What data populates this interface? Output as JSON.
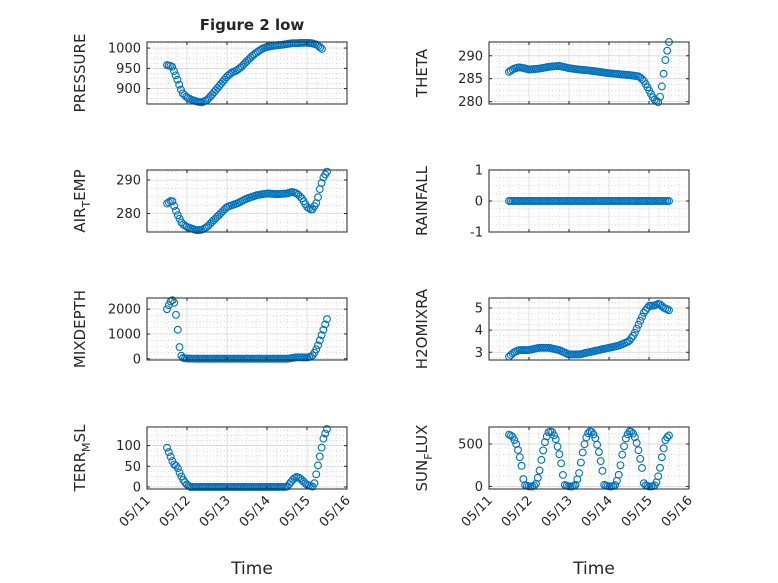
{
  "figure": {
    "title": "Figure 2 low",
    "xlabel": "Time",
    "marker_color": "#0072BD"
  },
  "chart_data": [
    {
      "id": "pressure",
      "type": "scatter",
      "title": "Figure 2 low",
      "ylabel": "PRESSURE",
      "ylim": [
        862,
        1015
      ],
      "yticks": [
        900,
        950,
        1000
      ],
      "xlim": [
        "05/11",
        "05/16"
      ],
      "xticks": [],
      "grid": true,
      "marker": "circle",
      "x": [
        "05/11 12:00",
        "05/11 15:00",
        "05/11 18:00",
        "05/11 21:00",
        "05/12 00:00",
        "05/12 03:00",
        "05/12 06:00",
        "05/12 09:00",
        "05/12 12:00",
        "05/12 15:00",
        "05/12 18:00",
        "05/12 21:00",
        "05/13 00:00",
        "05/13 03:00",
        "05/13 06:00",
        "05/13 09:00",
        "05/13 12:00",
        "05/13 15:00",
        "05/13 18:00",
        "05/13 21:00",
        "05/14 00:00",
        "05/14 03:00",
        "05/14 06:00",
        "05/14 09:00",
        "05/14 12:00",
        "05/14 15:00",
        "05/14 18:00",
        "05/14 21:00",
        "05/15 00:00",
        "05/15 03:00",
        "05/15 06:00",
        "05/15 09:00"
      ],
      "y": [
        958,
        955,
        925,
        890,
        878,
        872,
        868,
        866,
        872,
        885,
        900,
        915,
        930,
        940,
        945,
        955,
        968,
        980,
        990,
        998,
        1003,
        1005,
        1007,
        1008,
        1010,
        1012,
        1012,
        1013,
        1013,
        1012,
        1008,
        998
      ]
    },
    {
      "id": "theta",
      "type": "scatter",
      "ylabel": "THETA",
      "ylim": [
        279.5,
        293
      ],
      "yticks": [
        280,
        285,
        290
      ],
      "xlim": [
        "05/11",
        "05/16"
      ],
      "xticks": [],
      "grid": true,
      "marker": "circle",
      "x": [
        "05/11 12:00",
        "05/11 15:00",
        "05/11 18:00",
        "05/11 21:00",
        "05/12 00:00",
        "05/12 06:00",
        "05/12 12:00",
        "05/12 18:00",
        "05/13 00:00",
        "05/13 06:00",
        "05/13 12:00",
        "05/13 18:00",
        "05/14 00:00",
        "05/14 06:00",
        "05/14 12:00",
        "05/14 18:00",
        "05/14 21:00",
        "05/15 00:00",
        "05/15 03:00",
        "05/15 06:00",
        "05/15 08:00",
        "05/15 10:00",
        "05/15 12:00"
      ],
      "y": [
        286.5,
        287.2,
        287.5,
        287.3,
        287.0,
        287.2,
        287.6,
        287.8,
        287.3,
        287.0,
        286.8,
        286.5,
        286.2,
        286.0,
        285.8,
        285.5,
        284.5,
        282.5,
        280.5,
        279.8,
        284.0,
        289.5,
        293.0
      ]
    },
    {
      "id": "air_temp",
      "type": "scatter",
      "ylabel": "AIR_TEMP",
      "ylabel_parts": [
        "AIR",
        "T",
        "EMP"
      ],
      "ylim": [
        274.5,
        293
      ],
      "yticks": [
        280,
        290
      ],
      "xlim": [
        "05/11",
        "05/16"
      ],
      "xticks": [],
      "grid": true,
      "marker": "circle",
      "x": [
        "05/11 12:00",
        "05/11 15:00",
        "05/11 18:00",
        "05/11 21:00",
        "05/12 00:00",
        "05/12 03:00",
        "05/12 06:00",
        "05/12 09:00",
        "05/12 12:00",
        "05/12 15:00",
        "05/12 18:00",
        "05/12 21:00",
        "05/13 00:00",
        "05/13 06:00",
        "05/13 12:00",
        "05/13 18:00",
        "05/14 00:00",
        "05/14 06:00",
        "05/14 12:00",
        "05/14 15:00",
        "05/14 18:00",
        "05/14 21:00",
        "05/15 00:00",
        "05/15 03:00",
        "05/15 06:00",
        "05/15 08:00",
        "05/15 10:00",
        "05/15 12:00"
      ],
      "y": [
        283.0,
        284.0,
        280.0,
        277.0,
        276.0,
        275.5,
        275.0,
        275.2,
        276.0,
        277.5,
        279.0,
        280.5,
        282.0,
        283.0,
        284.5,
        285.5,
        286.0,
        285.8,
        286.0,
        286.5,
        286.0,
        284.5,
        282.0,
        281.0,
        283.5,
        288.0,
        291.0,
        292.5
      ]
    },
    {
      "id": "rainfall",
      "type": "scatter",
      "ylabel": "RAINFALL",
      "ylim": [
        -1,
        1
      ],
      "yticks": [
        -1,
        0,
        1
      ],
      "xlim": [
        "05/11",
        "05/16"
      ],
      "xticks": [],
      "grid": true,
      "marker": "circle",
      "x": [
        "05/11 12:00",
        "05/15 12:00"
      ],
      "constant_y": 0
    },
    {
      "id": "mixdepth",
      "type": "scatter",
      "ylabel": "MIXDEPTH",
      "ylim": [
        -50,
        2450
      ],
      "yticks": [
        0,
        1000,
        2000
      ],
      "xlim": [
        "05/11",
        "05/16"
      ],
      "xticks": [],
      "grid": true,
      "marker": "circle",
      "x": [
        "05/11 12:00",
        "05/11 14:00",
        "05/11 16:00",
        "05/11 18:00",
        "05/11 19:00",
        "05/11 20:00",
        "05/11 21:00",
        "05/11 22:00",
        "05/12 00:00",
        "05/12 06:00",
        "05/12 12:00",
        "05/12 18:00",
        "05/13 00:00",
        "05/13 06:00",
        "05/13 12:00",
        "05/13 18:00",
        "05/14 00:00",
        "05/14 06:00",
        "05/14 12:00",
        "05/14 18:00",
        "05/15 00:00",
        "05/15 03:00",
        "05/15 05:00",
        "05/15 07:00",
        "05/15 09:00",
        "05/15 11:00",
        "05/15 12:00"
      ],
      "y": [
        2000,
        2300,
        2400,
        1500,
        800,
        200,
        80,
        20,
        10,
        0,
        0,
        0,
        0,
        0,
        0,
        0,
        0,
        0,
        0,
        60,
        50,
        100,
        300,
        600,
        1000,
        1400,
        1600
      ]
    },
    {
      "id": "h2omixra",
      "type": "scatter",
      "ylabel": "H2OMIXRA",
      "ylim": [
        2.65,
        5.45
      ],
      "yticks": [
        3,
        4,
        5
      ],
      "xlim": [
        "05/11",
        "05/16"
      ],
      "xticks": [],
      "grid": true,
      "marker": "circle",
      "x": [
        "05/11 12:00",
        "05/11 15:00",
        "05/11 18:00",
        "05/11 21:00",
        "05/12 00:00",
        "05/12 06:00",
        "05/12 12:00",
        "05/12 18:00",
        "05/13 00:00",
        "05/13 06:00",
        "05/13 12:00",
        "05/13 18:00",
        "05/14 00:00",
        "05/14 06:00",
        "05/14 12:00",
        "05/14 15:00",
        "05/14 18:00",
        "05/14 21:00",
        "05/15 00:00",
        "05/15 03:00",
        "05/15 06:00",
        "05/15 09:00",
        "05/15 12:00"
      ],
      "y": [
        2.8,
        3.0,
        3.1,
        3.1,
        3.1,
        3.2,
        3.2,
        3.1,
        2.9,
        2.9,
        3.0,
        3.1,
        3.2,
        3.3,
        3.5,
        3.8,
        4.3,
        4.8,
        5.1,
        5.1,
        5.2,
        5.0,
        4.9
      ]
    },
    {
      "id": "terr_msl",
      "type": "scatter",
      "ylabel": "TERR_MSL",
      "ylabel_parts": [
        "TERR",
        "M",
        "SL"
      ],
      "ylim": [
        -5,
        145
      ],
      "yticks": [
        0,
        50,
        100
      ],
      "xlim": [
        "05/11",
        "05/16"
      ],
      "xticks": [
        "05/11",
        "05/12",
        "05/13",
        "05/14",
        "05/15",
        "05/16"
      ],
      "xlabel": "Time",
      "grid": true,
      "marker": "circle",
      "x": [
        "05/11 12:00",
        "05/11 14:00",
        "05/11 16:00",
        "05/11 18:00",
        "05/11 20:00",
        "05/11 22:00",
        "05/12 00:00",
        "05/12 02:00",
        "05/12 06:00",
        "05/12 12:00",
        "05/12 18:00",
        "05/13 00:00",
        "05/13 06:00",
        "05/13 12:00",
        "05/13 18:00",
        "05/14 00:00",
        "05/14 06:00",
        "05/14 12:00",
        "05/14 14:00",
        "05/14 16:00",
        "05/14 18:00",
        "05/14 20:00",
        "05/15 00:00",
        "05/15 04:00",
        "05/15 06:00",
        "05/15 08:00",
        "05/15 10:00",
        "05/15 12:00"
      ],
      "y": [
        95,
        75,
        55,
        50,
        30,
        15,
        5,
        0,
        0,
        0,
        0,
        0,
        0,
        0,
        0,
        0,
        0,
        0,
        10,
        20,
        25,
        20,
        5,
        0,
        40,
        80,
        120,
        140
      ]
    },
    {
      "id": "sun_flux",
      "type": "scatter",
      "ylabel": "SUN_FLUX",
      "ylabel_parts": [
        "SUN",
        "F",
        "LUX"
      ],
      "ylim": [
        -30,
        700
      ],
      "yticks": [
        0,
        500
      ],
      "xlim": [
        "05/11",
        "05/16"
      ],
      "xticks": [
        "05/11",
        "05/12",
        "05/13",
        "05/14",
        "05/15",
        "05/16"
      ],
      "xlabel": "Time",
      "grid": true,
      "marker": "circle",
      "x": [
        "05/11 12:00",
        "05/11 14:00",
        "05/11 16:00",
        "05/11 18:00",
        "05/11 20:00",
        "05/11 21:00",
        "05/12 00:00",
        "05/12 02:00",
        "05/12 04:00",
        "05/12 06:00",
        "05/12 08:00",
        "05/12 10:00",
        "05/12 12:00",
        "05/12 14:00",
        "05/12 16:00",
        "05/12 18:00",
        "05/12 20:00",
        "05/12 21:00",
        "05/13 00:00",
        "05/13 02:00",
        "05/13 04:00",
        "05/13 06:00",
        "05/13 08:00",
        "05/13 10:00",
        "05/13 12:00",
        "05/13 14:00",
        "05/13 16:00",
        "05/13 18:00",
        "05/13 20:00",
        "05/13 21:00",
        "05/14 00:00",
        "05/14 02:00",
        "05/14 04:00",
        "05/14 06:00",
        "05/14 08:00",
        "05/14 10:00",
        "05/14 12:00",
        "05/14 14:00",
        "05/14 16:00",
        "05/14 18:00",
        "05/14 20:00",
        "05/14 21:00",
        "05/15 00:00",
        "05/15 02:00",
        "05/15 04:00",
        "05/15 06:00",
        "05/15 08:00",
        "05/15 10:00",
        "05/15 12:00"
      ],
      "y": [
        610,
        590,
        520,
        390,
        200,
        20,
        0,
        0,
        20,
        150,
        380,
        560,
        650,
        640,
        560,
        400,
        200,
        20,
        0,
        0,
        20,
        150,
        380,
        560,
        650,
        640,
        560,
        400,
        200,
        20,
        0,
        0,
        20,
        150,
        380,
        560,
        650,
        640,
        560,
        400,
        200,
        20,
        0,
        0,
        20,
        150,
        380,
        560,
        600
      ]
    }
  ]
}
